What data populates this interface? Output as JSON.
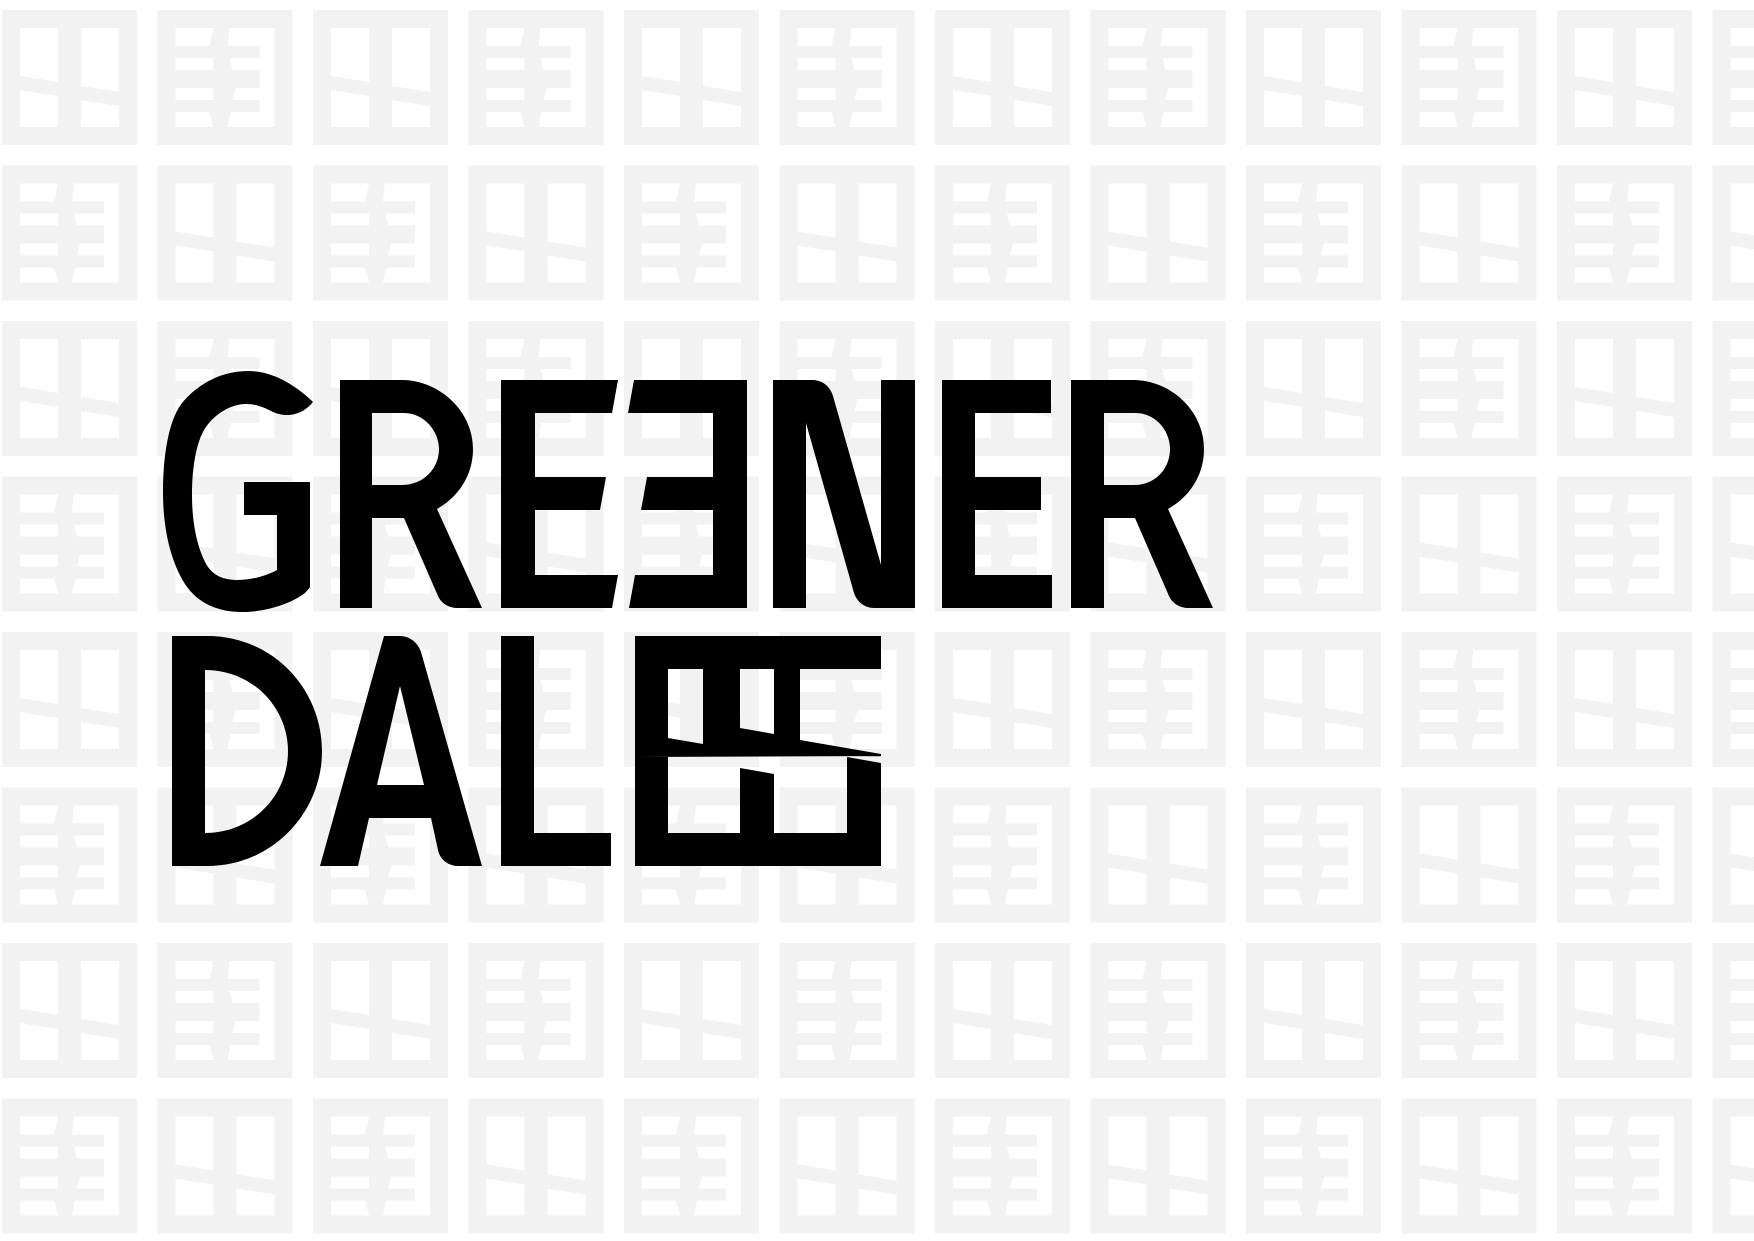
{
  "brand": {
    "line1": "GREENER",
    "line2": "DALE"
  },
  "colors": {
    "background": "#ffffff",
    "pattern": "#f2f2f2",
    "logo": "#000000"
  },
  "pattern": {
    "motif": "monogram-tile-icon",
    "columns": 12,
    "rows": 8
  }
}
